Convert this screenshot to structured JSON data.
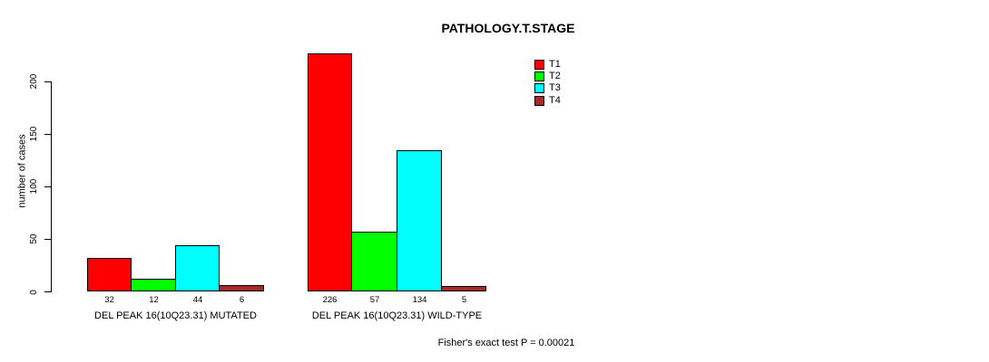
{
  "title": "PATHOLOGY.T.STAGE",
  "footer": "Fisher's exact test P = 0.00021",
  "chart_data": {
    "type": "bar",
    "title": "PATHOLOGY.T.STAGE",
    "xlabel": "",
    "ylabel": "number of cases",
    "ylim": [
      0,
      230
    ],
    "yticks": [
      0,
      50,
      100,
      150,
      200
    ],
    "grid": false,
    "legend_position": "top-right",
    "categories": [
      "DEL PEAK 16(10Q23.31) MUTATED",
      "DEL PEAK 16(10Q23.31) WILD-TYPE"
    ],
    "series": [
      {
        "name": "T1",
        "color": "#FF0000",
        "values": [
          32,
          226
        ]
      },
      {
        "name": "T2",
        "color": "#00FF00",
        "values": [
          12,
          57
        ]
      },
      {
        "name": "T3",
        "color": "#00FFFF",
        "values": [
          44,
          134
        ]
      },
      {
        "name": "T4",
        "color": "#A52A2A",
        "values": [
          6,
          5
        ]
      }
    ],
    "bar_value_labels": [
      [
        "32",
        "12",
        "44",
        "6"
      ],
      [
        "226",
        "57",
        "134",
        "5"
      ]
    ],
    "annotation": "Fisher's exact test P = 0.00021",
    "colors": {
      "background": "#FFFFFF",
      "axis": "#000000",
      "bar_border": "#000000"
    }
  }
}
